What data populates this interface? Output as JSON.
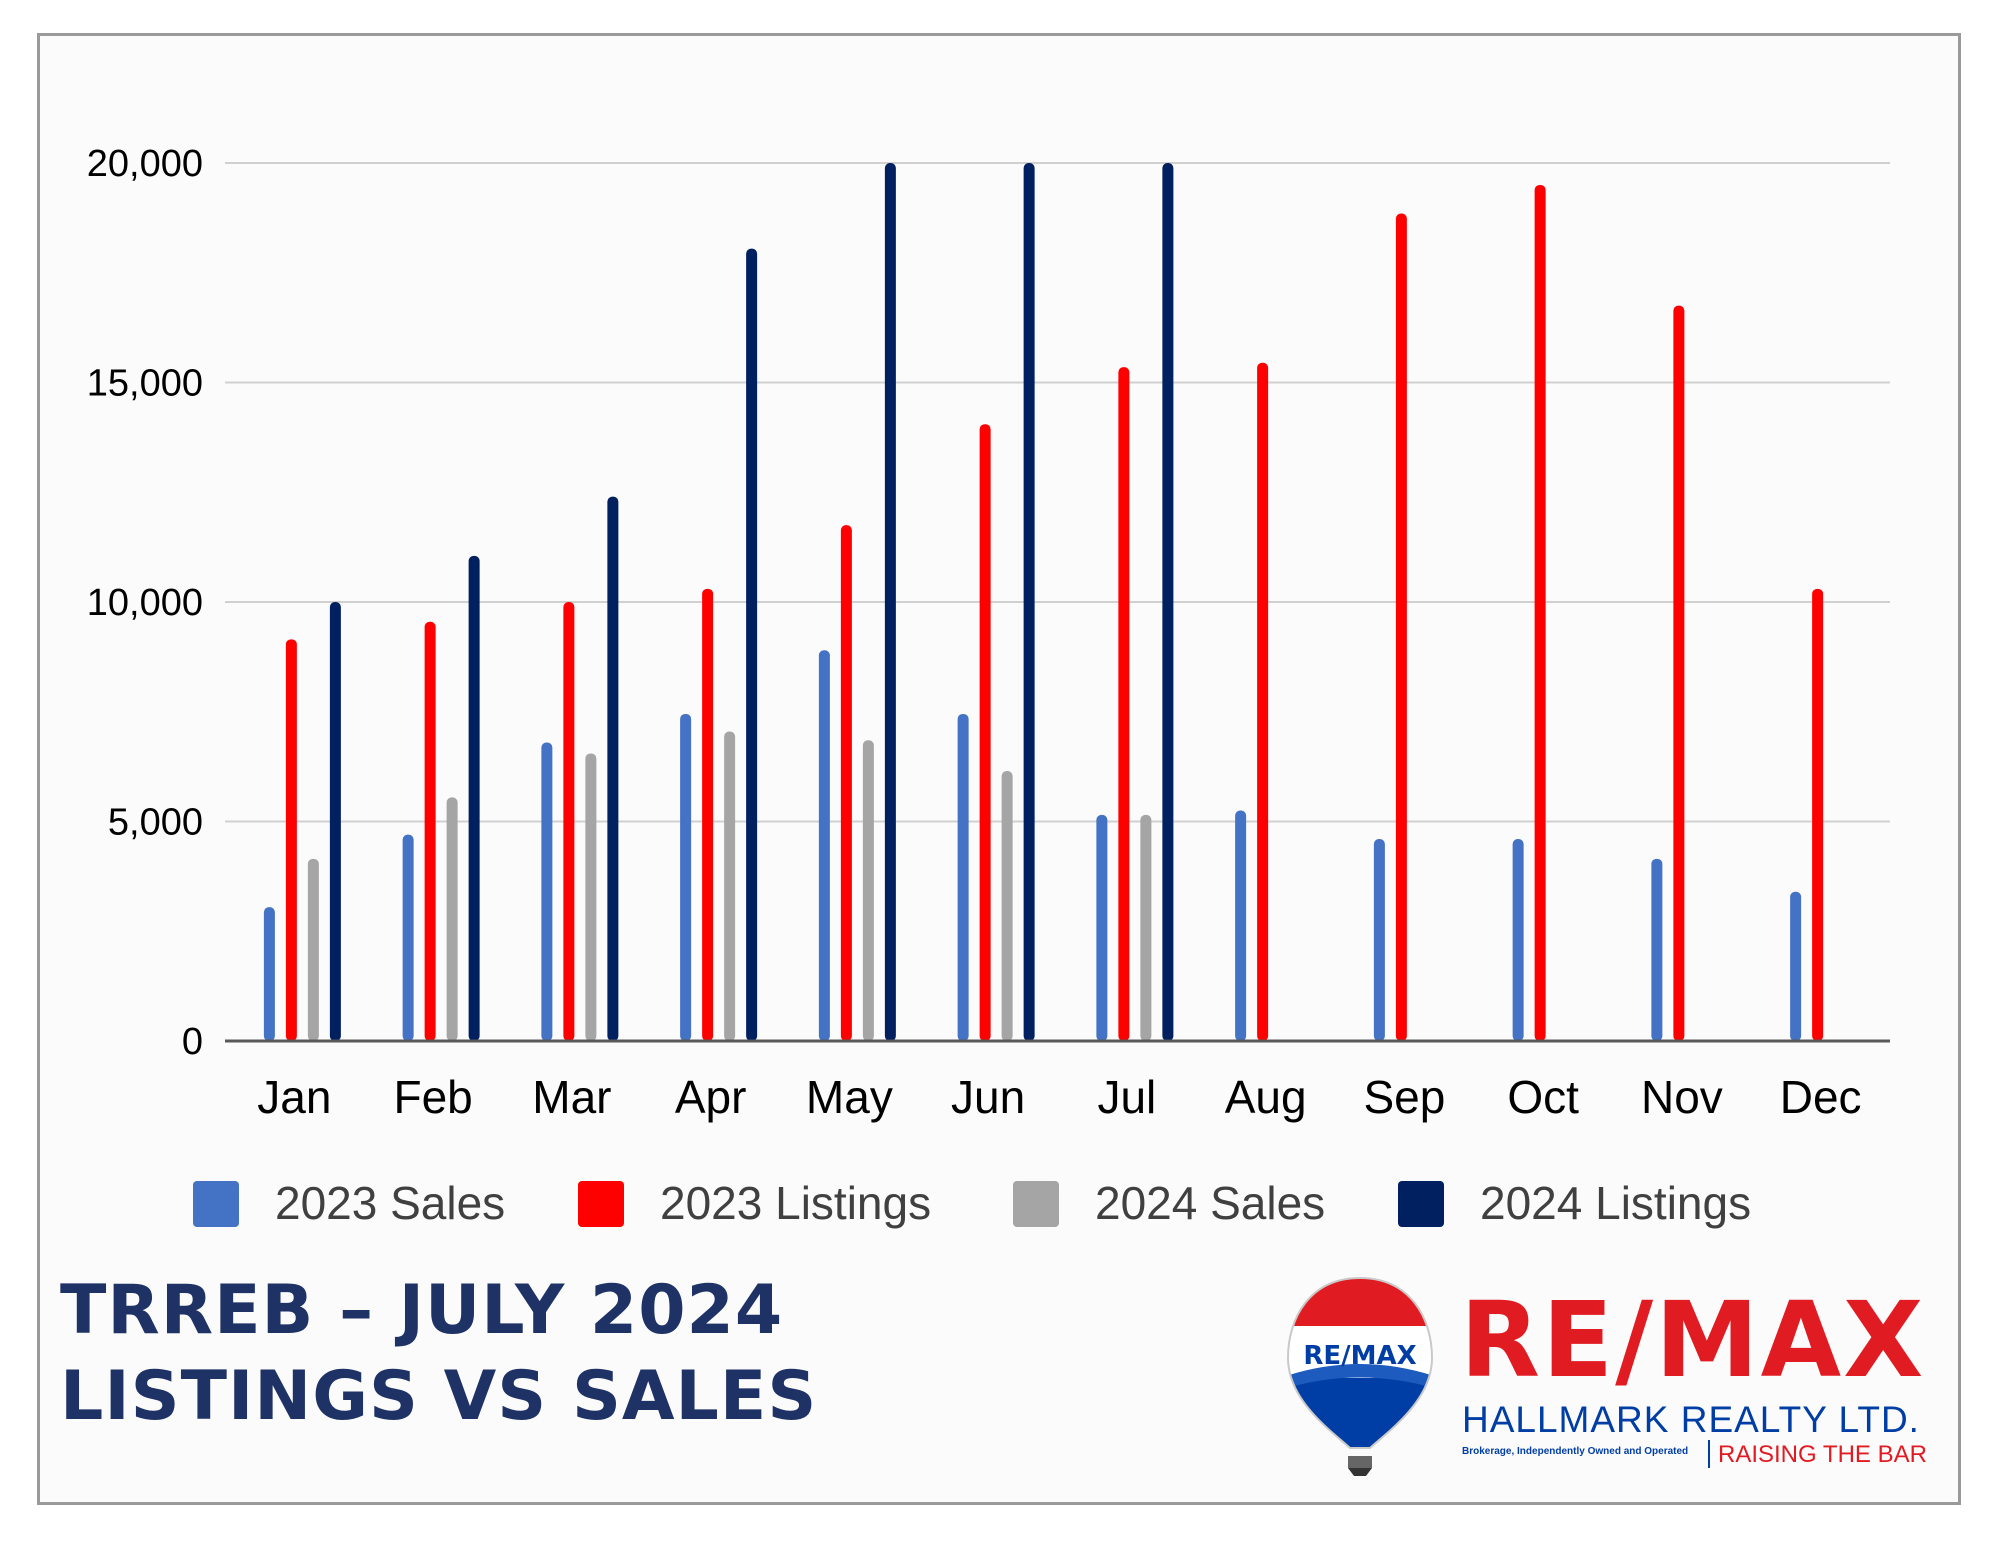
{
  "title": {
    "line1": "TRREB – JULY 2024",
    "line2": "LISTINGS VS SALES"
  },
  "logo": {
    "balloon_text": "RE/MAX",
    "wordmark": "RE/MAX",
    "company": "HALLMARK REALTY LTD.",
    "fine_print": "Brokerage, Independently Owned and Operated",
    "tagline": "RAISING THE BAR",
    "brand_red": "#e11b22",
    "brand_blue": "#003da5"
  },
  "chart_data": {
    "type": "bar",
    "categories": [
      "Jan",
      "Feb",
      "Mar",
      "Apr",
      "May",
      "Jun",
      "Jul",
      "Aug",
      "Sep",
      "Oct",
      "Nov",
      "Dec"
    ],
    "ylim": [
      0,
      20000
    ],
    "yticks": [
      0,
      5000,
      10000,
      15000,
      20000
    ],
    "ytick_labels": [
      "0",
      "5,000",
      "10,000",
      "15,000",
      "20,000"
    ],
    "grid": true,
    "legend_position": "bottom",
    "series": [
      {
        "name": "2023 Sales",
        "color": "#4472c4",
        "values": [
          3050,
          4700,
          6800,
          7450,
          8900,
          7450,
          5150,
          5250,
          4600,
          4600,
          4150,
          3400
        ]
      },
      {
        "name": "2023 Listings",
        "color": "#ff0000",
        "values": [
          9150,
          9550,
          10000,
          10300,
          11750,
          14050,
          15350,
          15450,
          18850,
          19500,
          16750,
          10300
        ]
      },
      {
        "name": "2024 Sales",
        "color": "#a5a5a5",
        "values": [
          4150,
          5550,
          6550,
          7050,
          6850,
          6150,
          5150,
          null,
          null,
          null,
          null,
          null
        ]
      },
      {
        "name": "2024 Listings",
        "color": "#002060",
        "values": [
          10000,
          11050,
          12400,
          18050,
          20000,
          20000,
          20000,
          null,
          null,
          null,
          null,
          null
        ]
      }
    ]
  }
}
